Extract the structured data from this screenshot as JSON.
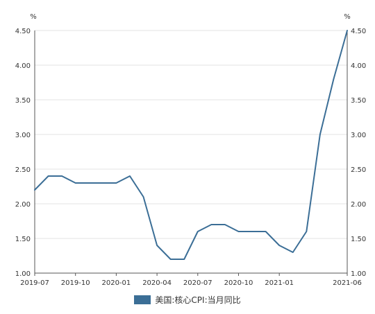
{
  "chart_data": {
    "type": "line",
    "x": [
      "2019-07",
      "2019-08",
      "2019-09",
      "2019-10",
      "2019-11",
      "2019-12",
      "2020-01",
      "2020-02",
      "2020-03",
      "2020-04",
      "2020-05",
      "2020-06",
      "2020-07",
      "2020-08",
      "2020-09",
      "2020-10",
      "2020-11",
      "2020-12",
      "2021-01",
      "2021-02",
      "2021-03",
      "2021-04",
      "2021-05",
      "2021-06"
    ],
    "x_tick_labels": [
      "2019-07",
      "2019-10",
      "2020-01",
      "2020-04",
      "2020-07",
      "2020-10",
      "2021-01",
      "2021-06"
    ],
    "series": [
      {
        "name": "美国:核心CPI:当月同比",
        "color": "#3b6e96",
        "values": [
          2.2,
          2.4,
          2.4,
          2.3,
          2.3,
          2.3,
          2.3,
          2.4,
          2.1,
          1.4,
          1.2,
          1.2,
          1.6,
          1.7,
          1.7,
          1.6,
          1.6,
          1.6,
          1.4,
          1.3,
          1.6,
          3.0,
          3.8,
          4.5
        ]
      }
    ],
    "y_ticks": [
      "1.00",
      "1.50",
      "2.00",
      "2.50",
      "3.00",
      "3.50",
      "4.00",
      "4.50"
    ],
    "ylim": [
      1.0,
      4.5
    ],
    "y_unit_left": "%",
    "y_unit_right": "%",
    "grid": true,
    "legend_position": "bottom-center"
  }
}
